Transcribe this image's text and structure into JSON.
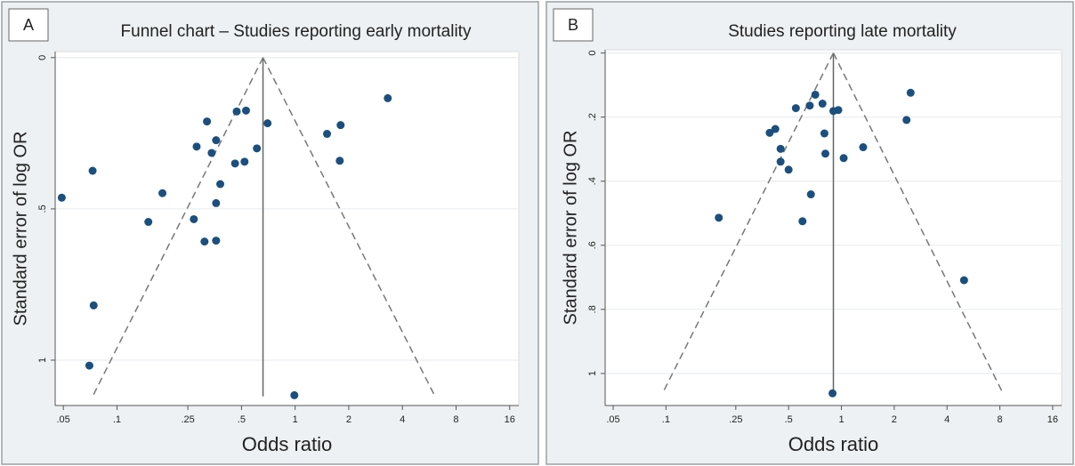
{
  "chart_data": [
    {
      "type": "scatter",
      "panel_label": "A",
      "title": "Funnel chart – Studies reporting early mortality",
      "x_label": "Odds ratio",
      "y_label": "Standard error of log OR",
      "x_log": true,
      "y_reversed": true,
      "grid": true,
      "color": "#1b4f7e",
      "xlim": [
        0.045,
        18
      ],
      "ylim": [
        -0.02,
        1.15
      ],
      "xticks": [
        {
          "value": 0.05,
          "label": ".05"
        },
        {
          "value": 0.1,
          "label": ".1"
        },
        {
          "value": 0.25,
          "label": ".25"
        },
        {
          "value": 0.5,
          "label": ".5"
        },
        1,
        2,
        4,
        8,
        16
      ],
      "yticks": [
        0,
        {
          "value": 0.5,
          "label": ".5"
        },
        1
      ],
      "reference_lines": [
        {
          "style": "solid",
          "x": [
            0.66,
            0.66
          ],
          "y": [
            0,
            1.12
          ]
        },
        {
          "style": "dashed",
          "x": [
            0.66,
            0.073
          ],
          "y": [
            0,
            1.12
          ]
        },
        {
          "style": "dashed",
          "x": [
            0.66,
            6.1
          ],
          "y": [
            0,
            1.12
          ]
        }
      ],
      "x": [
        3.31,
        1.8,
        1.51,
        1.78,
        0.7,
        0.53,
        0.47,
        0.32,
        0.61,
        0.36,
        0.28,
        0.34,
        0.46,
        0.52,
        0.38,
        0.18,
        0.073,
        0.049,
        0.36,
        0.27,
        0.15,
        0.31,
        0.36,
        0.074,
        0.07,
        0.99
      ],
      "y": [
        0.134,
        0.223,
        0.252,
        0.341,
        0.217,
        0.175,
        0.178,
        0.211,
        0.3,
        0.273,
        0.294,
        0.315,
        0.35,
        0.344,
        0.418,
        0.448,
        0.374,
        0.463,
        0.481,
        0.534,
        0.543,
        0.608,
        0.605,
        0.819,
        1.018,
        1.116
      ]
    },
    {
      "type": "scatter",
      "panel_label": "B",
      "title": "Studies reporting late mortality",
      "x_label": "Odds ratio",
      "y_label": "Standard error of log OR",
      "x_log": true,
      "y_reversed": true,
      "grid": true,
      "color": "#1b4f7e",
      "xlim": [
        0.045,
        18
      ],
      "ylim": [
        -0.01,
        1.1
      ],
      "xticks": [
        {
          "value": 0.05,
          "label": ".05"
        },
        {
          "value": 0.1,
          "label": ".1"
        },
        {
          "value": 0.25,
          "label": ".25"
        },
        {
          "value": 0.5,
          "label": ".5"
        },
        1,
        2,
        4,
        8,
        16
      ],
      "yticks": [
        0,
        {
          "value": 0.2,
          "label": ".2"
        },
        {
          "value": 0.4,
          "label": ".4"
        },
        {
          "value": 0.6,
          "label": ".6"
        },
        {
          "value": 0.8,
          "label": ".8"
        },
        1
      ],
      "reference_lines": [
        {
          "style": "solid",
          "x": [
            0.9,
            0.9
          ],
          "y": [
            0,
            1.06
          ]
        },
        {
          "style": "dashed",
          "x": [
            0.9,
            0.096
          ],
          "y": [
            0,
            1.06
          ]
        },
        {
          "style": "dashed",
          "x": [
            0.9,
            8.3
          ],
          "y": [
            0,
            1.06
          ]
        }
      ],
      "x": [
        2.48,
        2.35,
        0.71,
        0.78,
        0.66,
        0.55,
        0.9,
        0.96,
        0.39,
        0.42,
        0.8,
        0.45,
        0.81,
        1.33,
        1.03,
        0.45,
        0.5,
        0.67,
        0.6,
        0.2,
        5.0,
        0.89
      ],
      "y": [
        0.124,
        0.209,
        0.13,
        0.158,
        0.164,
        0.172,
        0.181,
        0.178,
        0.249,
        0.237,
        0.251,
        0.299,
        0.314,
        0.294,
        0.328,
        0.339,
        0.364,
        0.441,
        0.525,
        0.514,
        0.709,
        1.062
      ]
    }
  ]
}
